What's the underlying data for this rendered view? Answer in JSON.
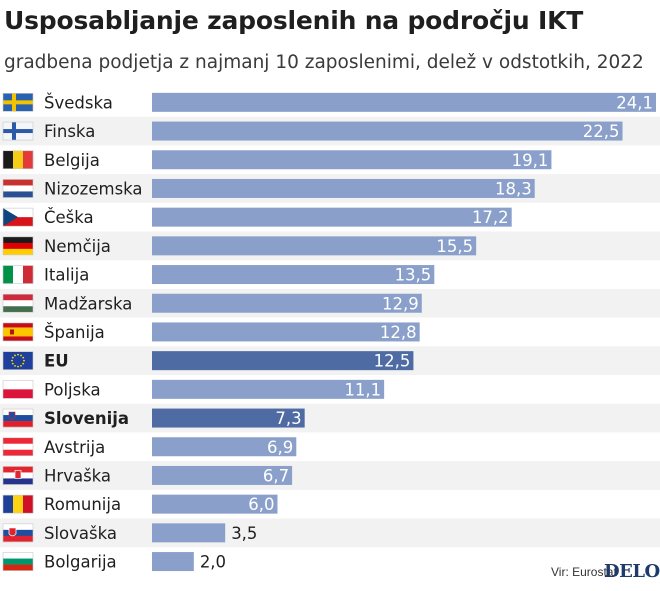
{
  "title": "Usposabljanje zaposlenih na področju IKT",
  "subtitle": "gradbena podjetja z najmanj 10 zaposlenimi, delež v odstotkih, 2022",
  "source": "Vir: Eurostat",
  "brand": "DELO",
  "colors": {
    "bar": "#8aa0cb",
    "bar_highlight": "#4e6ba3",
    "stripe": "#f2f2f2",
    "text": "#1f1f1f"
  },
  "chart_data": {
    "type": "bar",
    "orientation": "horizontal",
    "categories": [
      "Švedska",
      "Finska",
      "Belgija",
      "Nizozemska",
      "Češka",
      "Nemčija",
      "Italija",
      "Madžarska",
      "Španija",
      "EU",
      "Poljska",
      "Slovenija",
      "Avstrija",
      "Hrvaška",
      "Romunija",
      "Slovaška",
      "Bolgarija"
    ],
    "values": [
      24.1,
      22.5,
      19.1,
      18.3,
      17.2,
      15.5,
      13.5,
      12.9,
      12.8,
      12.5,
      11.1,
      7.3,
      6.9,
      6.7,
      6.0,
      3.5,
      2.0
    ],
    "value_labels": [
      "24,1",
      "22,5",
      "19,1",
      "18,3",
      "17,2",
      "15,5",
      "13,5",
      "12,9",
      "12,8",
      "12,5",
      "11,1",
      "7,3",
      "6,9",
      "6,7",
      "6,0",
      "3,5",
      "2,0"
    ],
    "highlighted": [
      "EU",
      "Slovenija"
    ],
    "flags": [
      "se-flag-icon",
      "fi-flag-icon",
      "be-flag-icon",
      "nl-flag-icon",
      "cz-flag-icon",
      "de-flag-icon",
      "it-flag-icon",
      "hu-flag-icon",
      "es-flag-icon",
      "eu-flag-icon",
      "pl-flag-icon",
      "si-flag-icon",
      "at-flag-icon",
      "hr-flag-icon",
      "ro-flag-icon",
      "sk-flag-icon",
      "bg-flag-icon"
    ],
    "xlim": [
      0,
      24.1
    ],
    "xlabel": "",
    "ylabel": "",
    "grid": false,
    "legend": "none"
  }
}
